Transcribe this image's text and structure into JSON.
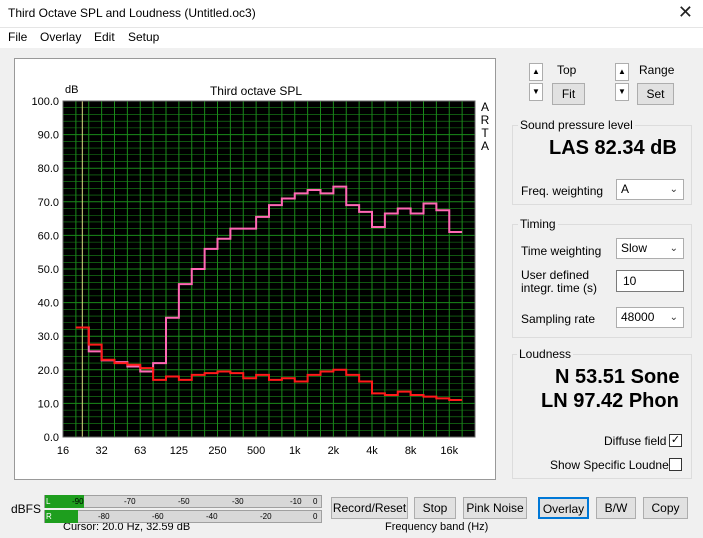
{
  "window": {
    "title": "Third Octave SPL and Loudness (Untitled.oc3)",
    "close_glyph": "✕"
  },
  "menu": [
    {
      "label": "File"
    },
    {
      "label": "Overlay"
    },
    {
      "label": "Edit"
    },
    {
      "label": "Setup"
    }
  ],
  "plot": {
    "title": "Third octave SPL",
    "y_unit": "dB",
    "arta": [
      "A",
      "R",
      "T",
      "A"
    ],
    "cursor_text": "Cursor:    20.0 Hz, 32.59 dB",
    "xlabel": "Frequency band (Hz)"
  },
  "chart_data": {
    "type": "line",
    "title": "Third octave SPL",
    "xlabel": "Frequency band (Hz)",
    "ylabel": "dB",
    "ylim": [
      0,
      100
    ],
    "y_ticks": [
      "100.0",
      "90.0",
      "80.0",
      "70.0",
      "60.0",
      "50.0",
      "40.0",
      "30.0",
      "20.0",
      "10.0",
      "0.0"
    ],
    "x_tick_labels": [
      "16",
      "32",
      "63",
      "125",
      "250",
      "500",
      "1k",
      "2k",
      "4k",
      "8k",
      "16k"
    ],
    "bands": [
      "20",
      "25",
      "31.5",
      "40",
      "50",
      "63",
      "80",
      "100",
      "125",
      "160",
      "200",
      "250",
      "315",
      "400",
      "500",
      "630",
      "800",
      "1k",
      "1.25k",
      "1.6k",
      "2k",
      "2.5k",
      "3.15k",
      "4k",
      "5k",
      "6.3k",
      "8k",
      "10k",
      "12.5k",
      "16k"
    ],
    "grid": true,
    "background": "#000000",
    "grid_color": "#1a8a1a",
    "series": [
      {
        "color": "#ff69b4",
        "values": [
          32.6,
          25.5,
          22.8,
          22.3,
          21.0,
          19.5,
          22.0,
          35.5,
          45.5,
          50.0,
          56.0,
          59.0,
          62.0,
          62.0,
          65.5,
          69.0,
          71.0,
          72.5,
          73.5,
          72.5,
          74.5,
          69.0,
          67.0,
          62.5,
          66.5,
          68.0,
          66.5,
          69.5,
          67.5,
          61.0
        ]
      },
      {
        "color": "#ff1a1a",
        "values": [
          32.6,
          27.5,
          23.0,
          22.0,
          21.5,
          20.5,
          17.0,
          18.0,
          17.0,
          18.5,
          19.0,
          19.5,
          19.0,
          17.5,
          18.5,
          17.0,
          17.5,
          16.5,
          18.5,
          19.5,
          20.0,
          18.5,
          16.5,
          13.0,
          12.5,
          13.5,
          12.5,
          12.0,
          11.5,
          11.0
        ]
      }
    ]
  },
  "zoom": {
    "top_label": "Top",
    "range_label": "Range",
    "fit_label": "Fit",
    "set_label": "Set",
    "up_glyph": "▲",
    "down_glyph": "▼"
  },
  "spl": {
    "group_title": "Sound pressure level",
    "value": "LAS 82.34 dB",
    "weighting_label": "Freq. weighting",
    "weighting_value": "A"
  },
  "timing": {
    "group_title": "Timing",
    "time_weighting_label": "Time weighting",
    "time_weighting_value": "Slow",
    "user_time_label_1": "User defined",
    "user_time_label_2": "integr. time (s)",
    "user_time_value": "10",
    "sampling_rate_label": "Sampling rate",
    "sampling_rate_value": "48000"
  },
  "loudness": {
    "group_title": "Loudness",
    "sone": "N 53.51 Sone",
    "phon": "LN 97.42 Phon",
    "diffuse_label": "Diffuse field",
    "diffuse_checked": "✓",
    "specific_label": "Show Specific Loudness"
  },
  "meter": {
    "label": "dBFS",
    "left_channel": "L",
    "right_channel": "R",
    "left_level_fraction": 0.14,
    "right_level_fraction": 0.12,
    "ticks_top": [
      "-90",
      "-70",
      "-50",
      "-30",
      "-10",
      "0"
    ],
    "ticks_bottom": [
      "-80",
      "-60",
      "-40",
      "-20",
      "0"
    ],
    "green_color": "#1e9e1e",
    "peak_color": "#c00000"
  },
  "buttons": {
    "record": "Record/Reset",
    "stop": "Stop",
    "pink": "Pink Noise",
    "overlay": "Overlay",
    "bw": "B/W",
    "copy": "Copy"
  }
}
